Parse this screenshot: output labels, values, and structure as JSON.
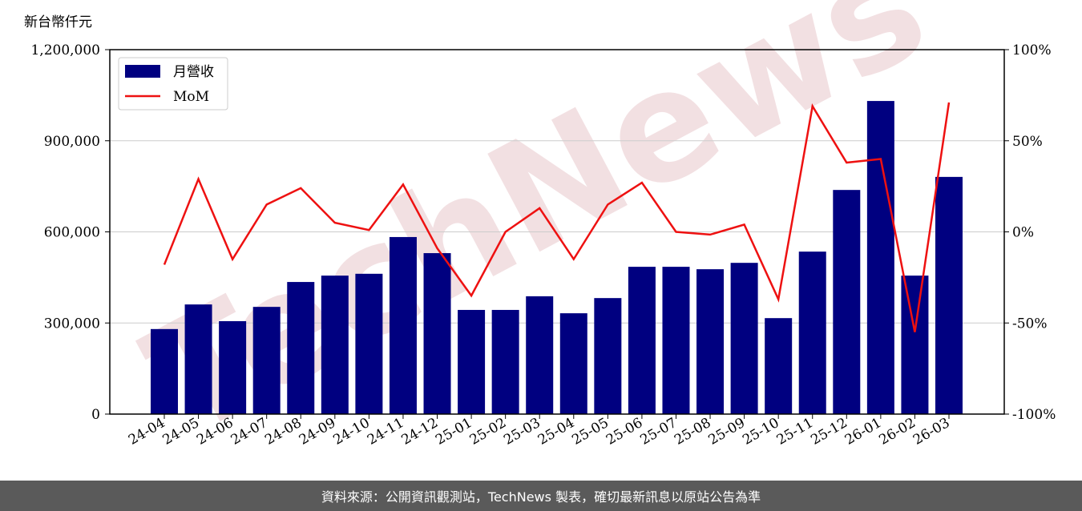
{
  "chart_data": {
    "type": "bar-line",
    "y_axis_label": "新台幣仟元",
    "watermark": "TechNews",
    "footer": "資料來源：公開資訊觀測站，TechNews 製表，確切最新訊息以原站公告為準",
    "categories": [
      "24-04",
      "24-05",
      "24-06",
      "24-07",
      "24-08",
      "24-09",
      "24-10",
      "24-11",
      "24-12",
      "25-01",
      "25-02",
      "25-03",
      "25-04",
      "25-05",
      "25-06",
      "25-07",
      "25-08",
      "25-09",
      "25-10",
      "25-11",
      "25-12",
      "26-01",
      "26-02",
      "26-03"
    ],
    "series": [
      {
        "name": "月營收",
        "type": "bar",
        "color": "#000080",
        "values": [
          280000,
          361000,
          306000,
          353000,
          435000,
          456000,
          462000,
          583000,
          530000,
          343000,
          343000,
          388000,
          332000,
          382000,
          485000,
          485000,
          477000,
          498000,
          316000,
          535000,
          738000,
          1031000,
          456000,
          781000
        ]
      },
      {
        "name": "MoM",
        "type": "line",
        "color": "#ee1111",
        "axis": "y2",
        "values": [
          -18,
          29,
          -15,
          15,
          24,
          5,
          1,
          26,
          -9,
          -35,
          0,
          13,
          -15,
          15,
          27,
          0,
          -1.5,
          4,
          -37,
          69,
          38,
          40,
          -55,
          71
        ]
      }
    ],
    "ylim": [
      0,
      1200000
    ],
    "yticks": [
      0,
      {
        "value": 300000,
        "label": "300,000"
      },
      {
        "value": 600000,
        "label": "600,000"
      },
      {
        "value": 900000,
        "label": "900,000"
      },
      {
        "value": 1200000,
        "label": "1,200,000"
      }
    ],
    "y2lim": [
      -100,
      100
    ],
    "y2ticks": [
      {
        "value": -100,
        "label": "-100%"
      },
      {
        "value": -50,
        "label": "-50%"
      },
      {
        "value": 0,
        "label": "0%"
      },
      {
        "value": 50,
        "label": "50%"
      },
      {
        "value": 100,
        "label": "100%"
      }
    ],
    "grid": true,
    "legend": "upper-left"
  }
}
